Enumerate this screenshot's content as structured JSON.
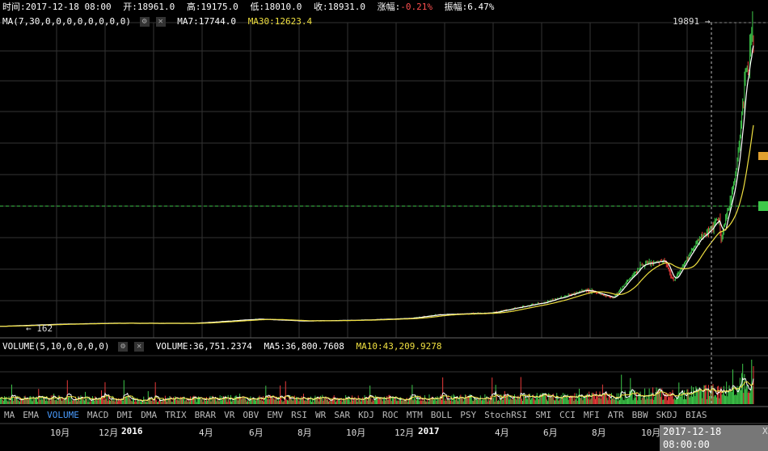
{
  "header": {
    "time": "时间:2017-12-18 08:00",
    "open": "开:18961.0",
    "high": "高:19175.0",
    "low": "低:18010.0",
    "close": "收:18931.0",
    "change_label": "涨幅:",
    "change_value": "-0.21%",
    "amp": "振幅:6.47%"
  },
  "ma_legend": {
    "params": "MA(7,30,0,0,0,0,0,0,0,0)",
    "ma7": "MA7:17744.0",
    "ma30": "MA30:12623.4"
  },
  "volume_legend": {
    "params": "VOLUME(5,10,0,0,0,0)",
    "volume": "VOLUME:36,751.2374",
    "ma5": "MA5:36,800.7608",
    "ma10": "MA10:43,209.9278"
  },
  "annotations": {
    "high_label": "19891 →",
    "low_label": "← 162",
    "crosshair_time": "2017-12-18 08:00:00",
    "edge_char": "X"
  },
  "icons": [
    "gear-icon",
    "close-icon"
  ],
  "tabs": [
    "MA",
    "EMA",
    "VOLUME",
    "MACD",
    "DMI",
    "DMA",
    "TRIX",
    "BRAR",
    "VR",
    "OBV",
    "EMV",
    "RSI",
    "WR",
    "SAR",
    "KDJ",
    "ROC",
    "MTM",
    "BOLL",
    "PSY",
    "StochRSI",
    "SMI",
    "CCI",
    "MFI",
    "ATR",
    "BBW",
    "SKDJ",
    "BIAS"
  ],
  "active_tab": "VOLUME",
  "time_axis": [
    {
      "label": "10月",
      "bold": false
    },
    {
      "label": "12月",
      "bold": false
    },
    {
      "label": "2016",
      "bold": true
    },
    {
      "label": "4月",
      "bold": false
    },
    {
      "label": "6月",
      "bold": false
    },
    {
      "label": "8月",
      "bold": false
    },
    {
      "label": "10月",
      "bold": false
    },
    {
      "label": "12月",
      "bold": false
    },
    {
      "label": "2017",
      "bold": true
    },
    {
      "label": "4月",
      "bold": false
    },
    {
      "label": "6月",
      "bold": false
    },
    {
      "label": "8月",
      "bold": false
    },
    {
      "label": "10月",
      "bold": false
    }
  ],
  "colors": {
    "up": "#3ec84a",
    "down": "#e83a3a",
    "ma_white": "#ffffff",
    "ma_yellow": "#f0e040",
    "grid": "#333333",
    "crosshair_v": "#bbbbbb",
    "crosshair_h": "#3ec84a",
    "accent_tab": "#4a9cff"
  },
  "chart_data": {
    "type": "candlestick",
    "price_range": [
      162,
      19891
    ],
    "x_range": [
      "2015-09",
      "2017-12-18"
    ],
    "price_path": [
      [
        "2015-09-01",
        230
      ],
      [
        "2015-11-01",
        360
      ],
      [
        "2016-01-01",
        430
      ],
      [
        "2016-04-01",
        420
      ],
      [
        "2016-06-15",
        700
      ],
      [
        "2016-08-01",
        580
      ],
      [
        "2016-10-01",
        620
      ],
      [
        "2016-12-01",
        750
      ],
      [
        "2017-01-01",
        980
      ],
      [
        "2017-03-01",
        1100
      ],
      [
        "2017-05-01",
        1800
      ],
      [
        "2017-06-15",
        2600
      ],
      [
        "2017-07-15",
        2100
      ],
      [
        "2017-08-15",
        4200
      ],
      [
        "2017-09-10",
        4500
      ],
      [
        "2017-09-20",
        3200
      ],
      [
        "2017-10-15",
        5600
      ],
      [
        "2017-11-10",
        7200
      ],
      [
        "2017-11-12",
        5800
      ],
      [
        "2017-11-28",
        10000
      ],
      [
        "2017-12-07",
        15000
      ],
      [
        "2017-12-09",
        16800
      ],
      [
        "2017-12-13",
        17200
      ],
      [
        "2017-12-16",
        19500
      ],
      [
        "2017-12-17",
        19891
      ],
      [
        "2017-12-18",
        18931
      ]
    ],
    "current": {
      "open": 18961.0,
      "high": 19175.0,
      "low": 18010.0,
      "close": 18931.0,
      "ma7": 17744.0,
      "ma30": 12623.4,
      "volume": 36751.2374,
      "vol_ma5": 36800.7608,
      "vol_ma10": 43209.9278
    }
  }
}
